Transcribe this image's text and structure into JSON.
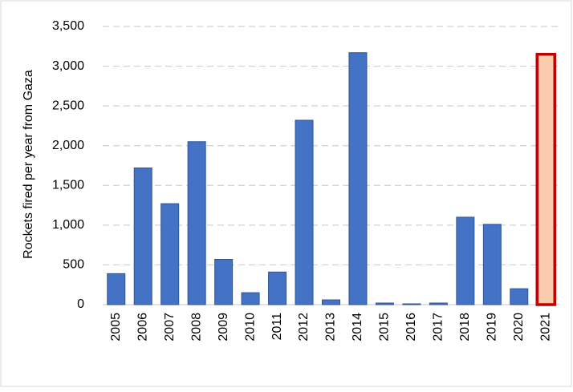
{
  "chart_data": {
    "type": "bar",
    "y_label": "Rockets fired per year from Gaza",
    "categories": [
      "2005",
      "2006",
      "2007",
      "2008",
      "2009",
      "2010",
      "2011",
      "2012",
      "2013",
      "2014",
      "2015",
      "2016",
      "2017",
      "2018",
      "2019",
      "2020",
      "2021"
    ],
    "values": [
      390,
      1720,
      1270,
      2050,
      570,
      150,
      410,
      2320,
      60,
      3170,
      20,
      10,
      20,
      1100,
      1010,
      200,
      3150
    ],
    "colors": [
      "#4472c4",
      "#4472c4",
      "#4472c4",
      "#4472c4",
      "#4472c4",
      "#4472c4",
      "#4472c4",
      "#4472c4",
      "#4472c4",
      "#4472c4",
      "#4472c4",
      "#4472c4",
      "#4472c4",
      "#4472c4",
      "#4472c4",
      "#4472c4",
      "#f8cbad"
    ],
    "edge_colors": [
      "#2f5597",
      "#2f5597",
      "#2f5597",
      "#2f5597",
      "#2f5597",
      "#2f5597",
      "#2f5597",
      "#2f5597",
      "#2f5597",
      "#2f5597",
      "#2f5597",
      "#2f5597",
      "#2f5597",
      "#2f5597",
      "#2f5597",
      "#2f5597",
      "#c00000"
    ],
    "ylim": [
      0,
      3500
    ],
    "yticks": [
      0,
      500,
      {
        "value": 1000,
        "label": "1,000"
      },
      {
        "value": 1500,
        "label": "1,500"
      },
      {
        "value": 2000,
        "label": "2,000"
      },
      {
        "value": 2500,
        "label": "2,500"
      },
      {
        "value": 3000,
        "label": "3,000"
      },
      {
        "value": 3500,
        "label": "3,500"
      }
    ],
    "grid": true
  }
}
